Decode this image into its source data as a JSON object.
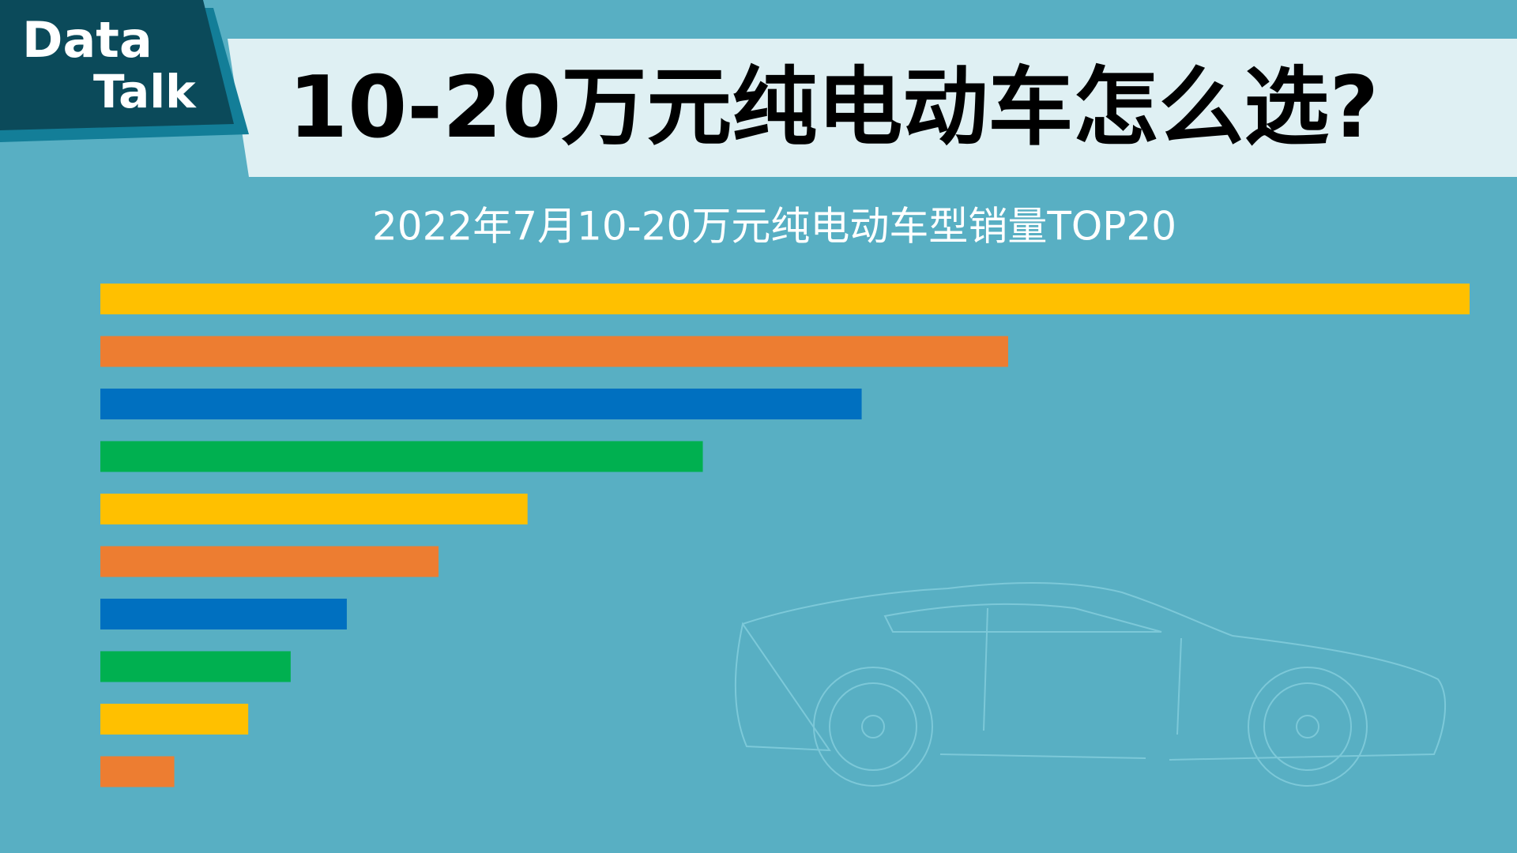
{
  "logo": {
    "line1": "Data",
    "line2": "Talk"
  },
  "chart_data": {
    "type": "bar",
    "orientation": "horizontal",
    "title": "10-20万元纯电动车怎么选?",
    "subtitle": "2022年7月10-20万元纯电动车型销量TOP20",
    "categories": [
      null,
      null,
      null,
      null,
      null,
      null,
      null,
      null,
      null,
      null
    ],
    "values": [
      100,
      66.3,
      55.6,
      44.0,
      31.2,
      24.7,
      18.0,
      13.9,
      10.8,
      5.4
    ],
    "colors": [
      "#ffc000",
      "#ed7d31",
      "#0070c0",
      "#00b050",
      "#ffc000",
      "#ed7d31",
      "#0070c0",
      "#00b050",
      "#ffc000",
      "#ed7d31"
    ],
    "xlim": [
      0,
      100
    ]
  }
}
